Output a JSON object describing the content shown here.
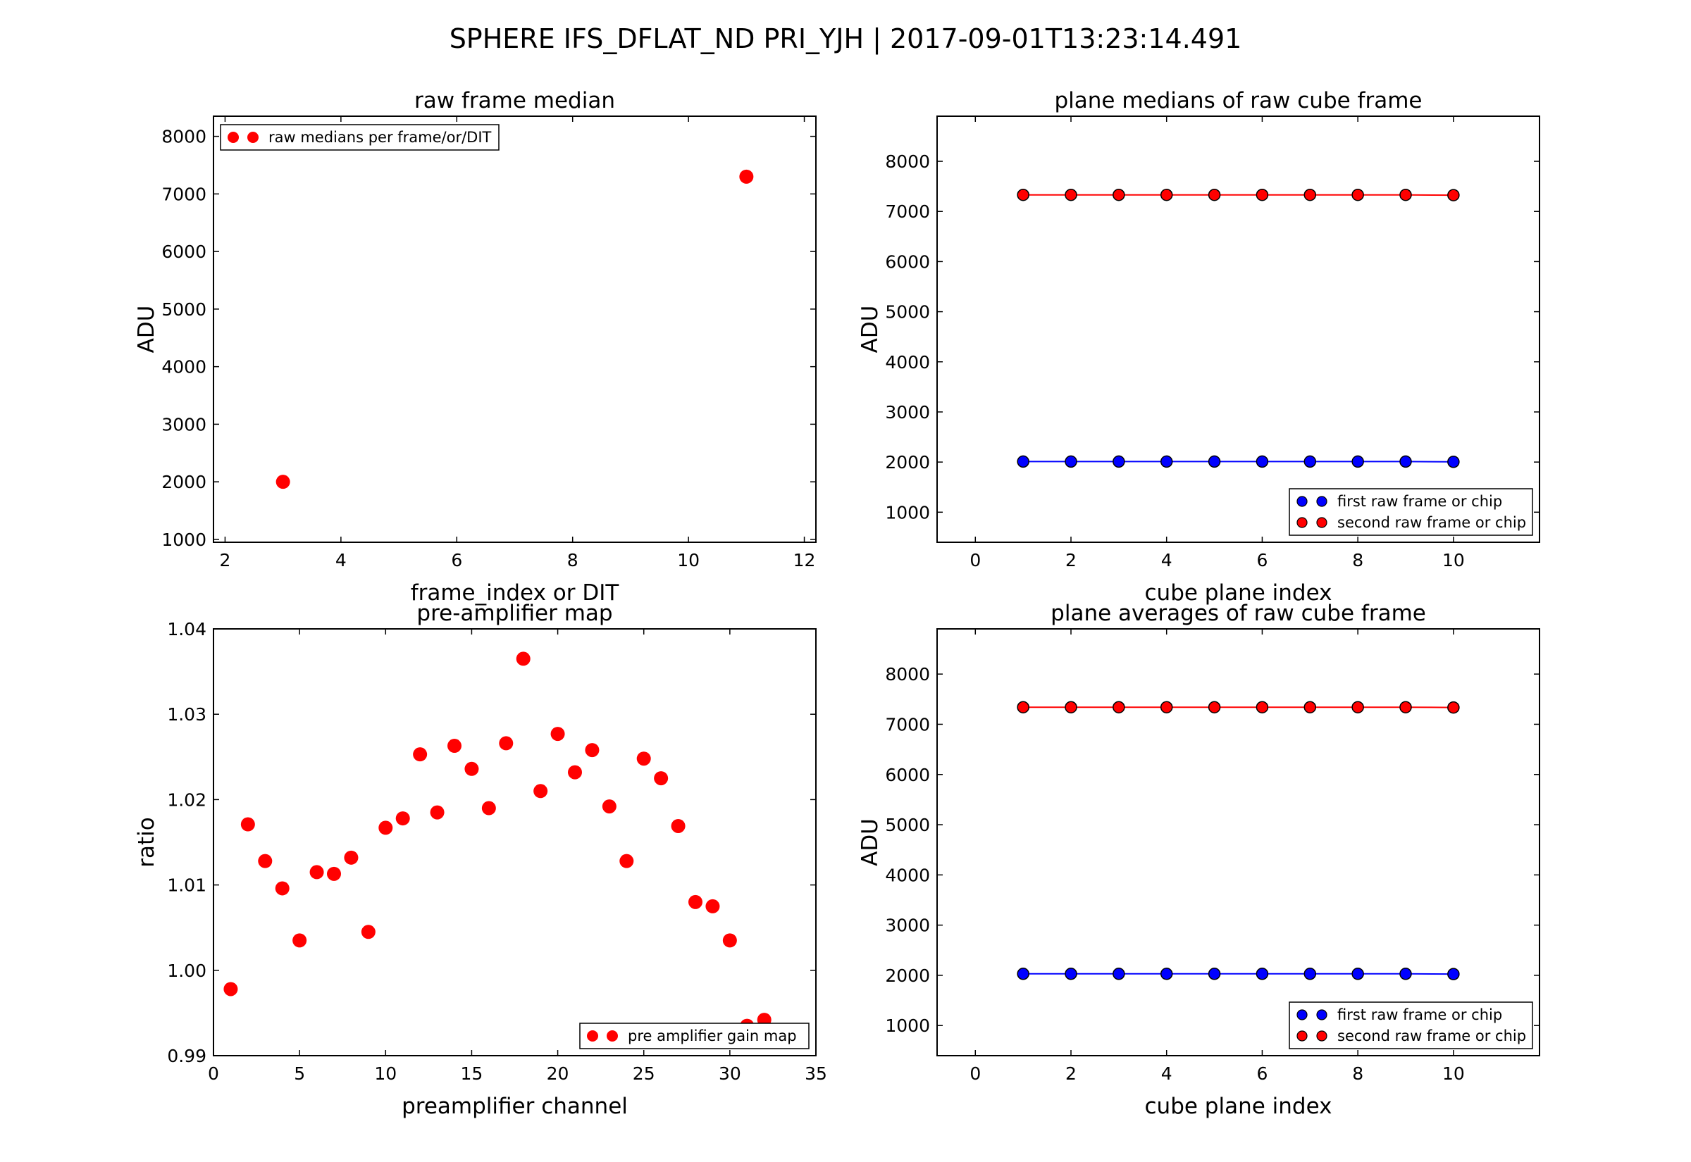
{
  "figure": {
    "title": "SPHERE IFS_DFLAT_ND   PRI_YJH  |  2017-09-01T13:23:14.491"
  },
  "colors": {
    "red": "#ff0000",
    "blue": "#0000ff",
    "frame": "#000000",
    "background": "#ffffff"
  },
  "chart_data": [
    {
      "id": "raw-frame-median",
      "type": "scatter",
      "title": "raw frame median",
      "xlabel": "frame_index or DIT",
      "ylabel": "ADU",
      "xlim": [
        1.8,
        12.2
      ],
      "ylim": [
        950,
        8350
      ],
      "xticks": [
        2,
        4,
        6,
        8,
        10,
        12
      ],
      "yticks": [
        1000,
        2000,
        3000,
        4000,
        5000,
        6000,
        7000,
        8000
      ],
      "grid": false,
      "legend": {
        "position": "top-left",
        "entries": [
          {
            "name": "raw medians per frame/or/DIT",
            "color": "#ff0000"
          }
        ]
      },
      "series": [
        {
          "name": "raw medians per frame/or/DIT",
          "color": "#ff0000",
          "style": "markers",
          "x": [
            3,
            11
          ],
          "y": [
            2000,
            7300
          ]
        }
      ]
    },
    {
      "id": "plane-medians",
      "type": "line",
      "title": "plane medians of raw cube frame",
      "xlabel": "cube plane index",
      "ylabel": "ADU",
      "xlim": [
        -0.8,
        11.8
      ],
      "ylim": [
        400,
        8900
      ],
      "xticks": [
        0,
        2,
        4,
        6,
        8,
        10
      ],
      "yticks": [
        1000,
        2000,
        3000,
        4000,
        5000,
        6000,
        7000,
        8000
      ],
      "grid": false,
      "legend": {
        "position": "bottom-right",
        "entries": [
          {
            "name": "first  raw frame or chip",
            "color": "#0000ff"
          },
          {
            "name": "second raw frame or chip",
            "color": "#ff0000"
          }
        ]
      },
      "series": [
        {
          "name": "first  raw frame or chip",
          "color": "#0000ff",
          "style": "line-markers",
          "x": [
            1,
            2,
            3,
            4,
            5,
            6,
            7,
            8,
            9,
            10
          ],
          "y": [
            2010,
            2010,
            2010,
            2010,
            2010,
            2010,
            2010,
            2010,
            2010,
            2005
          ]
        },
        {
          "name": "second raw frame or chip",
          "color": "#ff0000",
          "style": "line-markers",
          "x": [
            1,
            2,
            3,
            4,
            5,
            6,
            7,
            8,
            9,
            10
          ],
          "y": [
            7330,
            7330,
            7330,
            7330,
            7330,
            7330,
            7330,
            7330,
            7330,
            7325
          ]
        }
      ]
    },
    {
      "id": "pre-amplifier-map",
      "type": "scatter",
      "title": "pre-amplifier map",
      "xlabel": "preamplifier channel",
      "ylabel": "ratio",
      "xlim": [
        0,
        35
      ],
      "ylim": [
        0.99,
        1.04
      ],
      "xticks": [
        0,
        5,
        10,
        15,
        20,
        25,
        30,
        35
      ],
      "yticks": [
        0.99,
        1.0,
        1.01,
        1.02,
        1.03,
        1.04
      ],
      "ytick_labels": [
        "0.99",
        "1.00",
        "1.01",
        "1.02",
        "1.03",
        "1.04"
      ],
      "grid": false,
      "legend": {
        "position": "bottom-right",
        "entries": [
          {
            "name": "pre amplifier gain map",
            "color": "#ff0000"
          }
        ]
      },
      "series": [
        {
          "name": "pre amplifier gain map",
          "color": "#ff0000",
          "style": "markers",
          "x": [
            1,
            2,
            3,
            4,
            5,
            6,
            7,
            8,
            9,
            10,
            11,
            12,
            13,
            14,
            15,
            16,
            17,
            18,
            19,
            20,
            21,
            22,
            23,
            24,
            25,
            26,
            27,
            28,
            29,
            30,
            31,
            32
          ],
          "y": [
            0.9978,
            1.0171,
            1.0128,
            1.0096,
            1.0035,
            1.0115,
            1.0113,
            1.0132,
            1.0045,
            1.0167,
            1.0178,
            1.0253,
            1.0185,
            1.0263,
            1.0236,
            1.019,
            1.0266,
            1.0365,
            1.021,
            1.0277,
            1.0232,
            1.0258,
            1.0192,
            1.0128,
            1.0248,
            1.0225,
            1.0169,
            1.008,
            1.0075,
            1.0035,
            0.9935,
            0.9942
          ]
        }
      ]
    },
    {
      "id": "plane-averages",
      "type": "line",
      "title": "plane averages of raw cube frame",
      "xlabel": "cube plane index",
      "ylabel": "ADU",
      "xlim": [
        -0.8,
        11.8
      ],
      "ylim": [
        400,
        8900
      ],
      "xticks": [
        0,
        2,
        4,
        6,
        8,
        10
      ],
      "yticks": [
        1000,
        2000,
        3000,
        4000,
        5000,
        6000,
        7000,
        8000
      ],
      "grid": false,
      "legend": {
        "position": "bottom-right",
        "entries": [
          {
            "name": "first  raw frame or chip",
            "color": "#0000ff"
          },
          {
            "name": "second raw frame or chip",
            "color": "#ff0000"
          }
        ]
      },
      "series": [
        {
          "name": "first  raw frame or chip",
          "color": "#0000ff",
          "style": "line-markers",
          "x": [
            1,
            2,
            3,
            4,
            5,
            6,
            7,
            8,
            9,
            10
          ],
          "y": [
            2030,
            2030,
            2030,
            2030,
            2030,
            2030,
            2030,
            2030,
            2030,
            2025
          ]
        },
        {
          "name": "second raw frame or chip",
          "color": "#ff0000",
          "style": "line-markers",
          "x": [
            1,
            2,
            3,
            4,
            5,
            6,
            7,
            8,
            9,
            10
          ],
          "y": [
            7340,
            7340,
            7340,
            7340,
            7340,
            7340,
            7340,
            7340,
            7340,
            7335
          ]
        }
      ]
    }
  ]
}
